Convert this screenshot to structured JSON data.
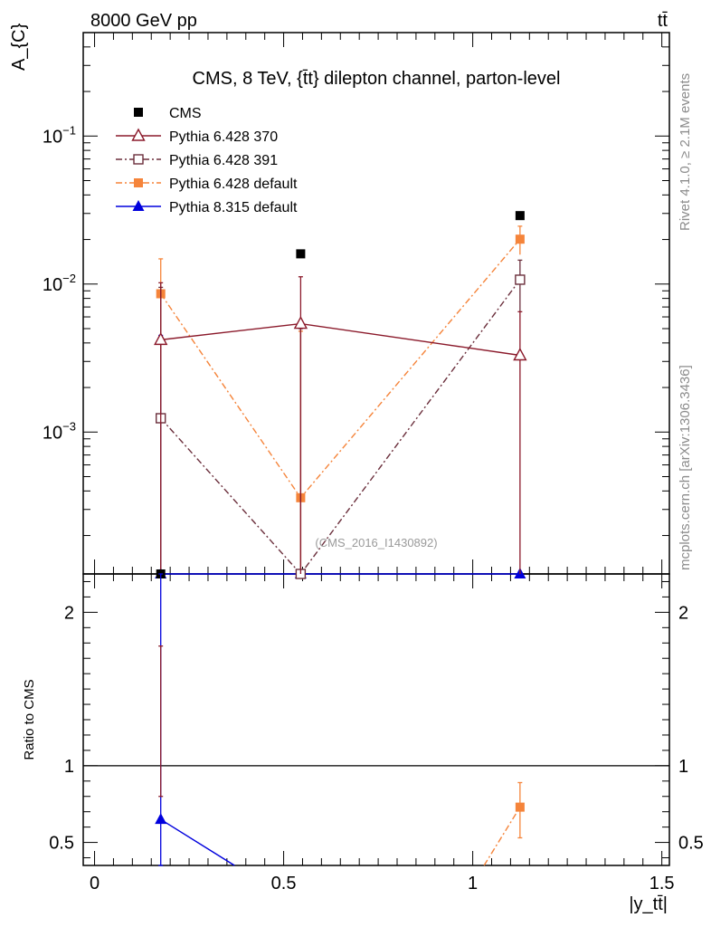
{
  "header": {
    "left": "8000 GeV pp",
    "right": "tt̄"
  },
  "side": {
    "rivet": "Rivet 4.1.0, ≥ 2.1M events",
    "mcplots": "mcplots.cern.ch [arXiv:1306.3436]"
  },
  "chart_data": [
    {
      "type": "scatter",
      "panel": "main",
      "title": "CMS, 8 TeV, {t̄t} dilepton channel, parton-level",
      "ylabel": "A_{C}",
      "yscale": "log",
      "xlim": [
        -0.03,
        1.52
      ],
      "ylim": [
        0.00011,
        0.5
      ],
      "analysis_label": "(CMS_2016_I1430892)",
      "x": [
        0.175,
        0.545,
        1.125
      ],
      "y_tick_labels": [
        "10^-3",
        "10^-2",
        "10^-1"
      ],
      "legend_position": "top-left",
      "series": [
        {
          "name": "CMS",
          "values": [
            0.0001,
            0.016,
            0.029
          ],
          "color": "#000000",
          "marker": "square",
          "line": "none"
        },
        {
          "name": "Pythia 6.428 370",
          "values": [
            0.0042,
            0.0054,
            0.0033
          ],
          "color": "#8b1a2b",
          "marker": "open-triangle",
          "line": "solid",
          "err_hi": [
            0.0102,
            0.0112,
            0.0065
          ],
          "err_lo": [
            0.00011,
            0.00011,
            0.00011
          ]
        },
        {
          "name": "Pythia 6.428 391",
          "values": [
            0.00124,
            0.0001,
            0.0107
          ],
          "color": "#6b2f3c",
          "marker": "open-square",
          "line": "dashdot",
          "err_hi": [
            0.0095,
            0.005,
            0.0145
          ],
          "err_lo": [
            0.00011,
            0.00011,
            0.0065
          ]
        },
        {
          "name": "Pythia 6.428 default",
          "values": [
            0.0086,
            0.00036,
            0.0201
          ],
          "color": "#f5843a",
          "marker": "square",
          "line": "dashdot",
          "err_hi": [
            0.0148,
            0.0048,
            0.0246
          ],
          "err_lo": [
            0.0024,
            0.00011,
            0.0158
          ]
        },
        {
          "name": "Pythia 8.315 default",
          "values": [
            0.0001,
            0.0001,
            0.0001
          ],
          "color": "#0000dd",
          "marker": "triangle",
          "line": "solid",
          "err_hi": [
            0.0045,
            0.0001,
            0.0001
          ],
          "err_lo": [
            0.00011,
            0.0001,
            0.0001
          ]
        }
      ]
    },
    {
      "type": "scatter",
      "panel": "ratio",
      "ylabel": "Ratio to CMS",
      "xlabel": "|y_tt̄|",
      "ylim": [
        0.35,
        2.25
      ],
      "xlim": [
        -0.03,
        1.52
      ],
      "x_tick_labels": [
        "0",
        "0.5",
        "1",
        "1.5"
      ],
      "y_tick_labels": [
        "0.5",
        "1",
        "2"
      ],
      "reference_line": 1,
      "series": [
        {
          "name": "Pythia 8.315 default",
          "points": [
            [
              0.175,
              0.65
            ],
            [
              0.37,
              0.35
            ]
          ],
          "color": "#0000dd",
          "marker": "triangle",
          "marker_index": 0,
          "err_hi": 2.25,
          "err_lo": 0.35
        },
        {
          "name": "Pythia 6.428 default",
          "points": [
            [
              1.03,
              0.35
            ],
            [
              1.125,
              0.73
            ]
          ],
          "color": "#f5843a",
          "marker": "square",
          "marker_index": 1,
          "err_hi": 0.89,
          "err_lo": 0.53
        },
        {
          "name": "Pythia 6.428 370",
          "points": [],
          "color": "#8b1a2b",
          "marker": "none",
          "err_x": 0.175,
          "err_hi": 1.78,
          "err_lo": 0.8
        }
      ]
    }
  ]
}
